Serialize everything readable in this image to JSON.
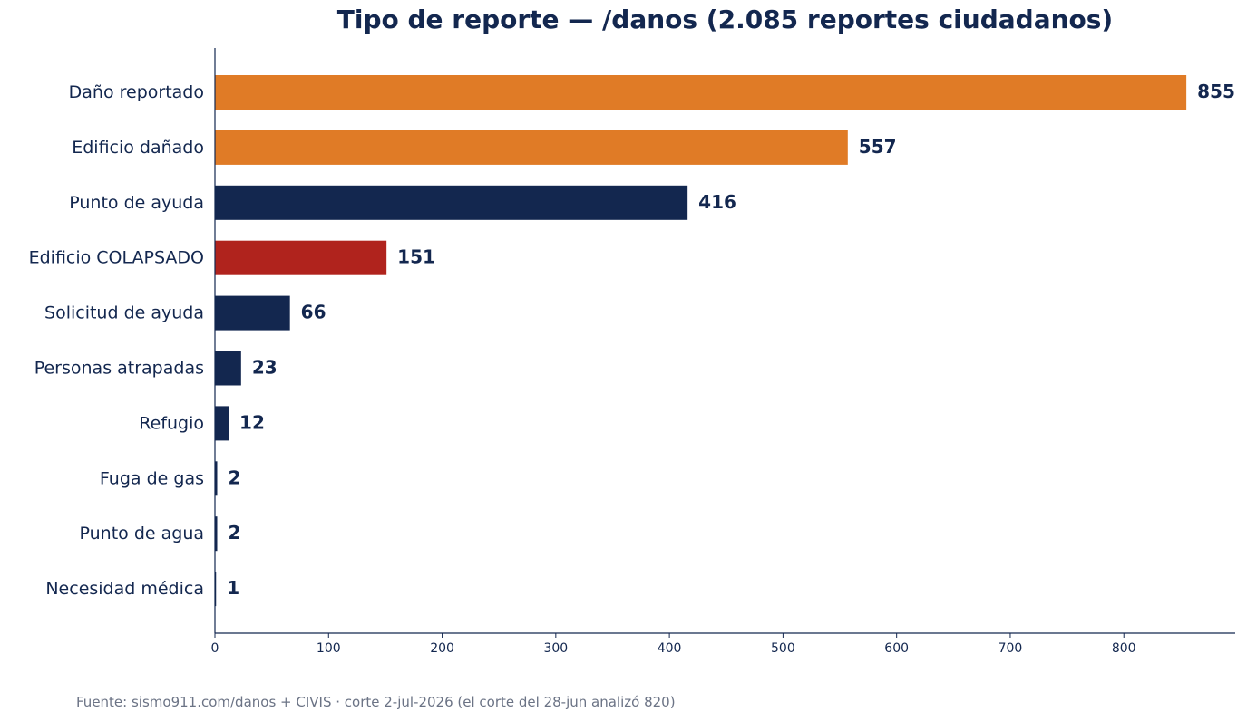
{
  "colors": {
    "text": "#13274f",
    "axis": "#13274f",
    "source_text": "#6b7385",
    "background": "#ffffff"
  },
  "source": "Fuente: sismo911.com/danos + CIVIS · corte 2-jul-2026 (el corte del 28-jun analizó 820)",
  "chart_data": {
    "type": "bar",
    "orientation": "horizontal",
    "title": "Tipo de reporte — /danos (2.085 reportes ciudadanos)",
    "xlabel": "",
    "ylabel": "",
    "categories": [
      "Daño reportado",
      "Edificio dañado",
      "Punto de ayuda",
      "Edificio COLAPSADO",
      "Solicitud de ayuda",
      "Personas atrapadas",
      "Refugio",
      "Fuga de gas",
      "Punto de agua",
      "Necesidad médica"
    ],
    "values": [
      855,
      557,
      416,
      151,
      66,
      23,
      12,
      2,
      2,
      1
    ],
    "value_labels": [
      "855",
      "557",
      "416",
      "151",
      "66",
      "23",
      "12",
      "2",
      "2",
      "1"
    ],
    "bar_colors": [
      "#e07b26",
      "#e07b26",
      "#13274f",
      "#b0231d",
      "#13274f",
      "#13274f",
      "#13274f",
      "#13274f",
      "#13274f",
      "#13274f"
    ],
    "xlim": [
      0,
      898
    ],
    "xticks": [
      0,
      100,
      200,
      300,
      400,
      500,
      600,
      700,
      800
    ],
    "grid": false,
    "legend": "none"
  }
}
